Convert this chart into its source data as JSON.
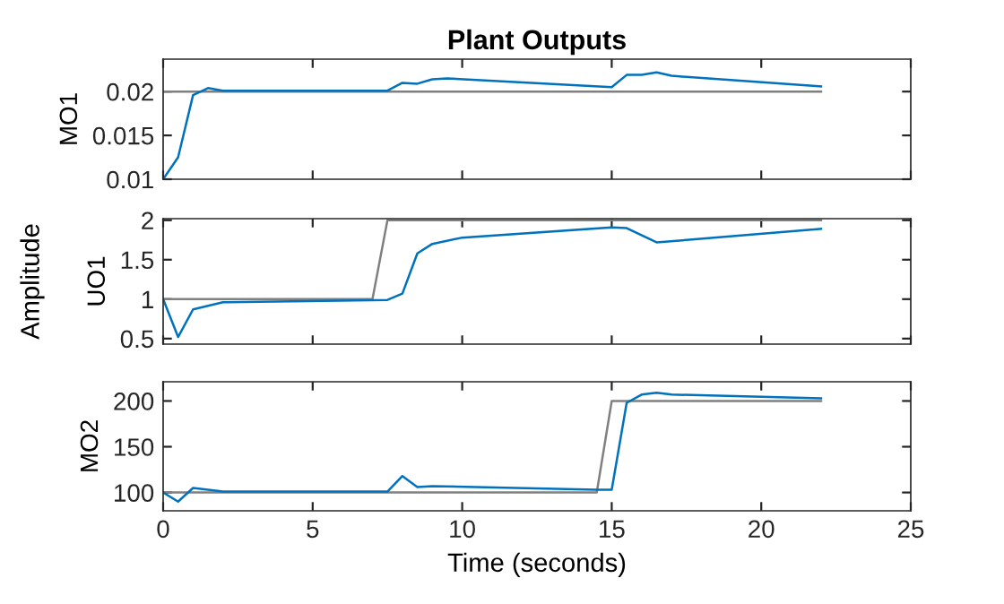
{
  "chart_data": [
    {
      "type": "line",
      "title": "Plant Outputs",
      "ylabel": "MO1",
      "xlim": [
        0,
        25
      ],
      "xticks": [
        0,
        5,
        10,
        15,
        20,
        25
      ],
      "ylim": [
        0.01,
        0.0237
      ],
      "yticks": [
        0.01,
        0.015,
        0.02
      ],
      "tick_labels": "y",
      "grid": false,
      "series": [
        {
          "color": "#808080",
          "x": [
            0,
            22
          ],
          "values": [
            0.02,
            0.02
          ]
        },
        {
          "color": "#0072bd",
          "x": [
            0,
            0.5,
            1,
            1.5,
            2,
            7.5,
            8,
            8.5,
            9,
            9.5,
            15,
            15.5,
            16,
            16.5,
            17,
            22
          ],
          "values": [
            0.01,
            0.0125,
            0.0196,
            0.0204,
            0.0201,
            0.0201,
            0.021,
            0.0209,
            0.0214,
            0.0215,
            0.0205,
            0.0219,
            0.0219,
            0.0222,
            0.0218,
            0.0206
          ]
        }
      ]
    },
    {
      "type": "line",
      "ylabel": "UO1",
      "annotations": [
        "Amplitude"
      ],
      "xlim": [
        0,
        25
      ],
      "xticks": [
        0,
        5,
        10,
        15,
        20,
        25
      ],
      "ylim": [
        0.43,
        2.02
      ],
      "yticks": [
        0.5,
        1,
        1.5,
        2
      ],
      "tick_labels": "y",
      "grid": false,
      "series": [
        {
          "color": "#808080",
          "x": [
            0,
            7,
            7.5,
            22
          ],
          "values": [
            1,
            1,
            2,
            2
          ]
        },
        {
          "color": "#0072bd",
          "x": [
            0,
            0.5,
            1,
            2,
            7.5,
            8,
            8.5,
            9,
            10,
            15,
            15.5,
            16.5,
            17.5,
            22
          ],
          "values": [
            1,
            0.52,
            0.87,
            0.96,
            0.99,
            1.07,
            1.58,
            1.7,
            1.78,
            1.91,
            1.9,
            1.72,
            1.75,
            1.89
          ]
        }
      ]
    },
    {
      "type": "line",
      "ylabel": "MO2",
      "xlabel": "Time (seconds)",
      "xlim": [
        0,
        25
      ],
      "xticks": [
        0,
        5,
        10,
        15,
        20,
        25
      ],
      "ylim": [
        80,
        221
      ],
      "yticks": [
        100,
        150,
        200
      ],
      "grid": false,
      "series": [
        {
          "color": "#808080",
          "x": [
            0,
            14.5,
            15,
            22
          ],
          "values": [
            100,
            100,
            200,
            200
          ]
        },
        {
          "color": "#0072bd",
          "x": [
            0,
            0.5,
            1,
            2,
            7.5,
            8,
            8.5,
            9,
            14.5,
            15,
            15.5,
            16,
            16.5,
            17,
            22
          ],
          "values": [
            100,
            90,
            105,
            101,
            101,
            118,
            106,
            107,
            103,
            103,
            198,
            207,
            209,
            207,
            203
          ]
        }
      ]
    }
  ]
}
